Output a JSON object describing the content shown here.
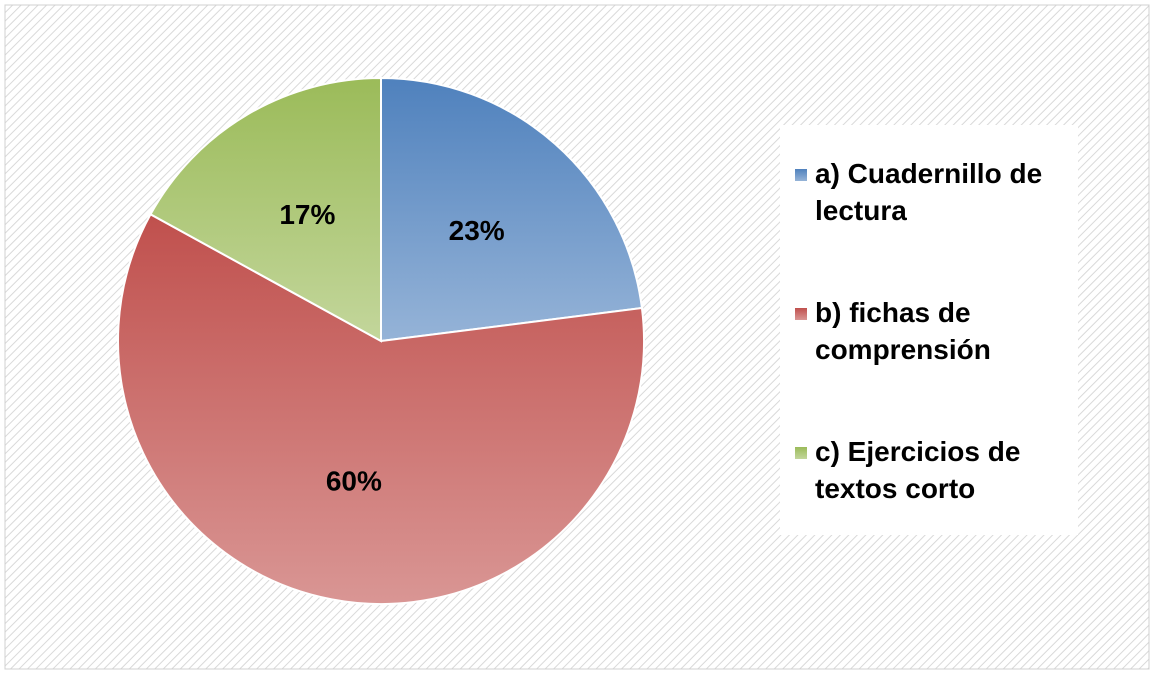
{
  "chart_data": {
    "type": "pie",
    "categories": [
      "a) Cuadernillo de lectura",
      "b) fichas de comprensión",
      "c) Ejercicios de textos corto"
    ],
    "values": [
      23,
      60,
      17
    ],
    "value_labels": [
      "23%",
      "60%",
      "17%"
    ],
    "colors": [
      "#4f81bd",
      "#c0504d",
      "#9bbb59"
    ],
    "legend": "right"
  }
}
